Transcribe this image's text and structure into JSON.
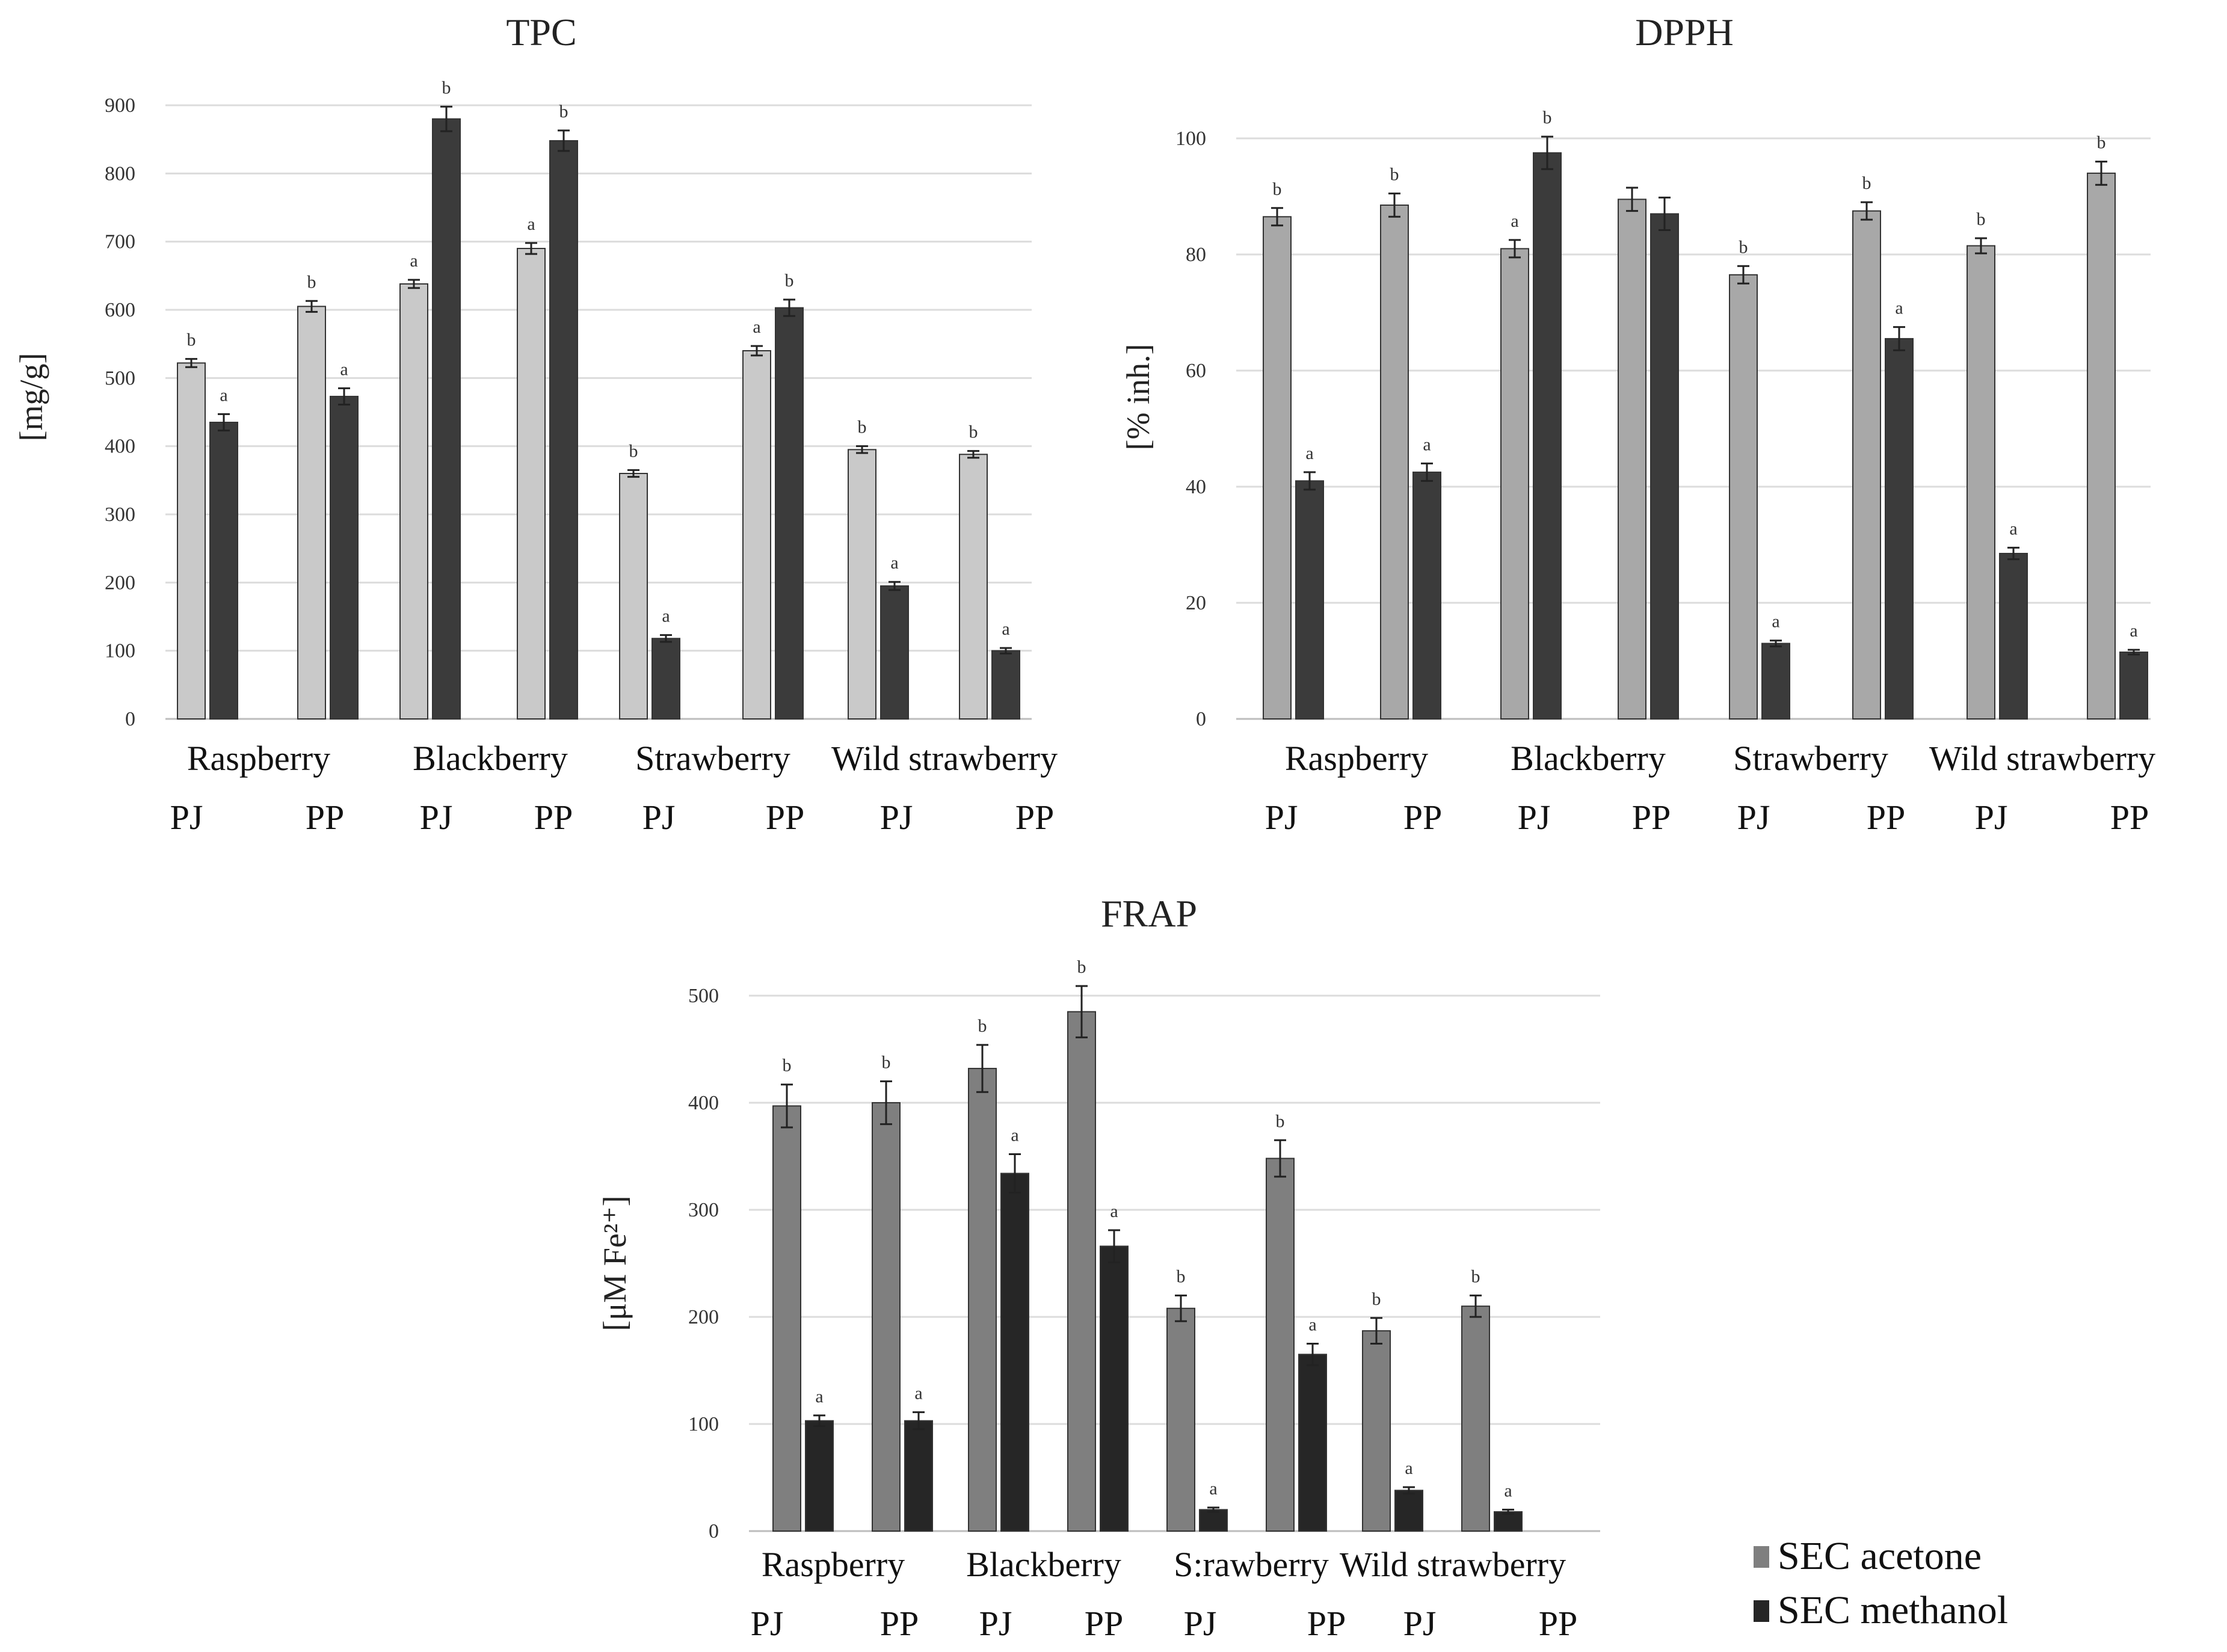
{
  "chart_data": [
    {
      "id": "tpc",
      "type": "bar",
      "title": "TPC",
      "ylabel": "[mg/g]",
      "ylim": [
        0,
        900
      ],
      "yticks": [
        0,
        100,
        200,
        300,
        400,
        500,
        600,
        700,
        800,
        900
      ],
      "fruit_labels": [
        "Raspberry",
        "Blackberry",
        "Strawberry",
        "Wild strawberry"
      ],
      "group_labels": [
        "PJ",
        "PP",
        "PJ",
        "PP",
        "PJ",
        "PP",
        "PJ",
        "PP"
      ],
      "series": [
        {
          "name": "SEC acetone",
          "color": "#c9c9c9",
          "values": [
            522,
            605,
            638,
            690,
            360,
            540,
            395,
            388
          ],
          "errors": [
            6,
            8,
            6,
            8,
            5,
            7,
            5,
            5
          ],
          "letters": [
            "b",
            "b",
            "a",
            "a",
            "b",
            "a",
            "b",
            "b"
          ]
        },
        {
          "name": "SEC methanol",
          "color": "#3b3b3b",
          "values": [
            435,
            473,
            880,
            848,
            118,
            603,
            195,
            100
          ],
          "errors": [
            12,
            12,
            18,
            15,
            5,
            12,
            6,
            4
          ],
          "letters": [
            "a",
            "a",
            "b",
            "b",
            "a",
            "b",
            "a",
            "a"
          ]
        }
      ]
    },
    {
      "id": "dpph",
      "type": "bar",
      "title": "DPPH",
      "ylabel": "[% inh.]",
      "ylim": [
        0,
        100
      ],
      "yticks": [
        0,
        20,
        40,
        60,
        80,
        100
      ],
      "fruit_labels": [
        "Raspberry",
        "Blackberry",
        "Strawberry",
        "Wild strawberry"
      ],
      "group_labels": [
        "PJ",
        "PP",
        "PJ",
        "PP",
        "PJ",
        "PP",
        "PJ",
        "PP"
      ],
      "series": [
        {
          "name": "SEC acetone",
          "color": "#a8a8a8",
          "values": [
            86.5,
            88.5,
            81,
            89.5,
            76.5,
            87.5,
            81.5,
            94
          ],
          "errors": [
            1.5,
            2,
            1.5,
            2,
            1.5,
            1.5,
            1.3,
            2
          ],
          "letters": [
            "b",
            "b",
            "a",
            "",
            "b",
            "b",
            "b",
            "b"
          ]
        },
        {
          "name": "SEC methanol",
          "color": "#3b3b3b",
          "values": [
            41,
            42.5,
            97.5,
            87,
            13,
            65.5,
            28.5,
            11.5
          ],
          "errors": [
            1.5,
            1.5,
            2.8,
            2.8,
            0.5,
            2,
            1,
            0.4
          ],
          "letters": [
            "a",
            "a",
            "b",
            "",
            "a",
            "a",
            "a",
            "a"
          ]
        }
      ]
    },
    {
      "id": "frap",
      "type": "bar",
      "title": "FRAP",
      "ylabel": "[μM Fe²⁺]",
      "ylim": [
        0,
        500
      ],
      "yticks": [
        0,
        100,
        200,
        300,
        400,
        500
      ],
      "fruit_labels": [
        "Raspberry",
        "Blackberry",
        "S:rawberry",
        "Wild strawberry"
      ],
      "group_labels": [
        "PJ",
        "PP",
        "PJ",
        "PP",
        "PJ",
        "PP",
        "PJ",
        "PP"
      ],
      "series": [
        {
          "name": "SEC acetone",
          "color": "#7f7f7f",
          "values": [
            397,
            400,
            432,
            485,
            208,
            348,
            187,
            210
          ],
          "errors": [
            20,
            20,
            22,
            24,
            12,
            17,
            12,
            10
          ],
          "letters": [
            "b",
            "b",
            "b",
            "b",
            "b",
            "b",
            "b",
            "b"
          ]
        },
        {
          "name": "SEC methanol",
          "color": "#262626",
          "values": [
            103,
            103,
            334,
            266,
            20,
            165,
            38,
            18
          ],
          "errors": [
            5,
            8,
            18,
            15,
            2,
            10,
            3,
            2
          ],
          "letters": [
            "a",
            "a",
            "a",
            "a",
            "a",
            "a",
            "a",
            "a"
          ]
        }
      ]
    }
  ],
  "legend": {
    "items": [
      {
        "label": "SEC acetone",
        "color": "#7f7f7f"
      },
      {
        "label": "SEC methanol",
        "color": "#262626"
      }
    ]
  }
}
